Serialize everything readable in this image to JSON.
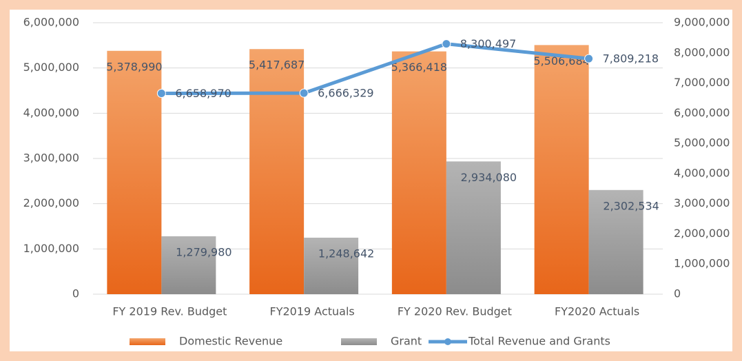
{
  "chart_data": {
    "type": "bar",
    "categories": [
      "FY 2019 Rev. Budget",
      "FY2019 Actuals",
      "FY 2020 Rev. Budget",
      "FY2020 Actuals"
    ],
    "series": [
      {
        "name": "Domestic Revenue",
        "color": "#ed7d31",
        "values": [
          5378990,
          5417687,
          5366418,
          5506684
        ],
        "value_labels": [
          "5,378,990",
          "5,417,687",
          "5,366,418",
          "5,506,684"
        ]
      },
      {
        "name": "Grant",
        "color": "#a5a5a5",
        "values": [
          1279980,
          1248642,
          2934080,
          2302534
        ],
        "value_labels": [
          "1,279,980",
          "1,248,642",
          "2,934,080",
          "2,302,534"
        ]
      },
      {
        "name": "Total Revenue and Grants",
        "color": "#5b9bd5",
        "type": "line",
        "axis": "y2",
        "values": [
          6658970,
          6666329,
          8300497,
          7809218
        ],
        "value_labels": [
          "6,658,970",
          "6,666,329",
          "8,300,497",
          "7,809,218"
        ]
      }
    ],
    "ylim": [
      0,
      6000000
    ],
    "yticks": [
      0,
      {
        "value": 1000000,
        "label": "1,000,000"
      },
      {
        "value": 2000000,
        "label": "2,000,000"
      },
      {
        "value": 3000000,
        "label": "3,000,000"
      },
      {
        "value": 4000000,
        "label": "4,000,000"
      },
      {
        "value": 5000000,
        "label": "5,000,000"
      },
      {
        "value": 6000000,
        "label": "6,000,000"
      }
    ],
    "y2lim": [
      0,
      9000000
    ],
    "y2ticks": [
      0,
      {
        "value": 1000000,
        "label": "1,000,000"
      },
      {
        "value": 2000000,
        "label": "2,000,000"
      },
      {
        "value": 3000000,
        "label": "3,000,000"
      },
      {
        "value": 4000000,
        "label": "4,000,000"
      },
      {
        "value": 5000000,
        "label": "5,000,000"
      },
      {
        "value": 6000000,
        "label": "6,000,000"
      },
      {
        "value": 7000000,
        "label": "7,000,000"
      },
      {
        "value": 8000000,
        "label": "8,000,000"
      },
      {
        "value": 9000000,
        "label": "9,000,000"
      }
    ],
    "grid": true,
    "legend": "bottom"
  }
}
